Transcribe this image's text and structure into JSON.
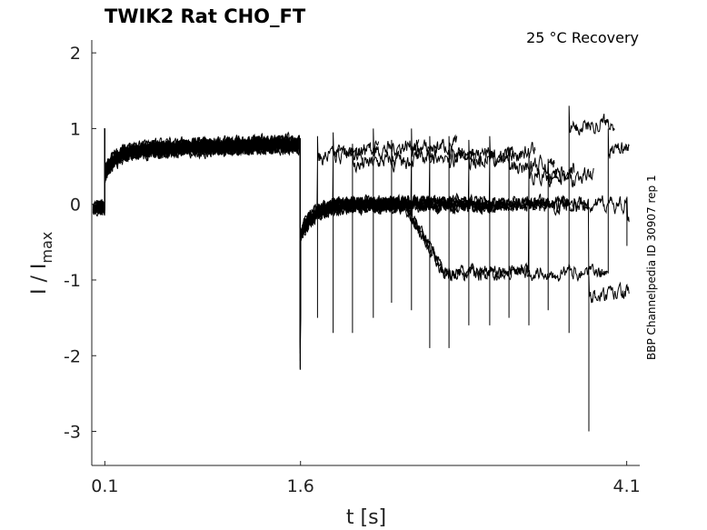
{
  "chart_data": {
    "type": "line",
    "title": "TWIK2  Rat  CHO_FT",
    "annotation": "25 °C  Recovery",
    "side_label": "BBP Channelpedia ID 30907 rep 1",
    "xlabel": "t [s]",
    "ylabel_main": "I / I",
    "ylabel_sub": "max",
    "xlim": [
      0.0,
      4.2
    ],
    "ylim": [
      -3.45,
      2.17
    ],
    "xticks": [
      "0.1",
      "1.6",
      "4.1"
    ],
    "xtick_values": [
      0.1,
      1.6,
      4.1
    ],
    "yticks": [
      "2",
      "1",
      "0",
      "-1",
      "-2",
      "-3"
    ],
    "ytick_values": [
      2,
      1,
      0,
      -1,
      -2,
      -3
    ],
    "grid": false,
    "conditioning_pulse": {
      "start": 0.1,
      "end": 1.6,
      "start_level": 0.65,
      "end_level": 0.8
    },
    "conditioning_end_spike_min": -2.2,
    "test_pulse_times": [
      1.73,
      1.85,
      2.0,
      2.16,
      2.3,
      2.45,
      2.59,
      2.74,
      2.89,
      3.05,
      3.2,
      3.35,
      3.5,
      3.66,
      3.81,
      3.96,
      4.1
    ],
    "test_pulse_spike_min": [
      -1.5,
      -1.7,
      -1.7,
      -1.5,
      -1.3,
      -1.4,
      -1.9,
      -1.9,
      -1.6,
      -1.6,
      -1.5,
      -1.6,
      -1.4,
      -1.7,
      -3.0,
      -0.9,
      -0.55
    ],
    "test_pulse_level": [
      0.6,
      0.65,
      0.5,
      0.7,
      0.55,
      0.7,
      0.6,
      0.6,
      0.55,
      0.6,
      0.45,
      0.35,
      0.3,
      1.0,
      -1.25,
      0.7,
      -0.2
    ]
  }
}
